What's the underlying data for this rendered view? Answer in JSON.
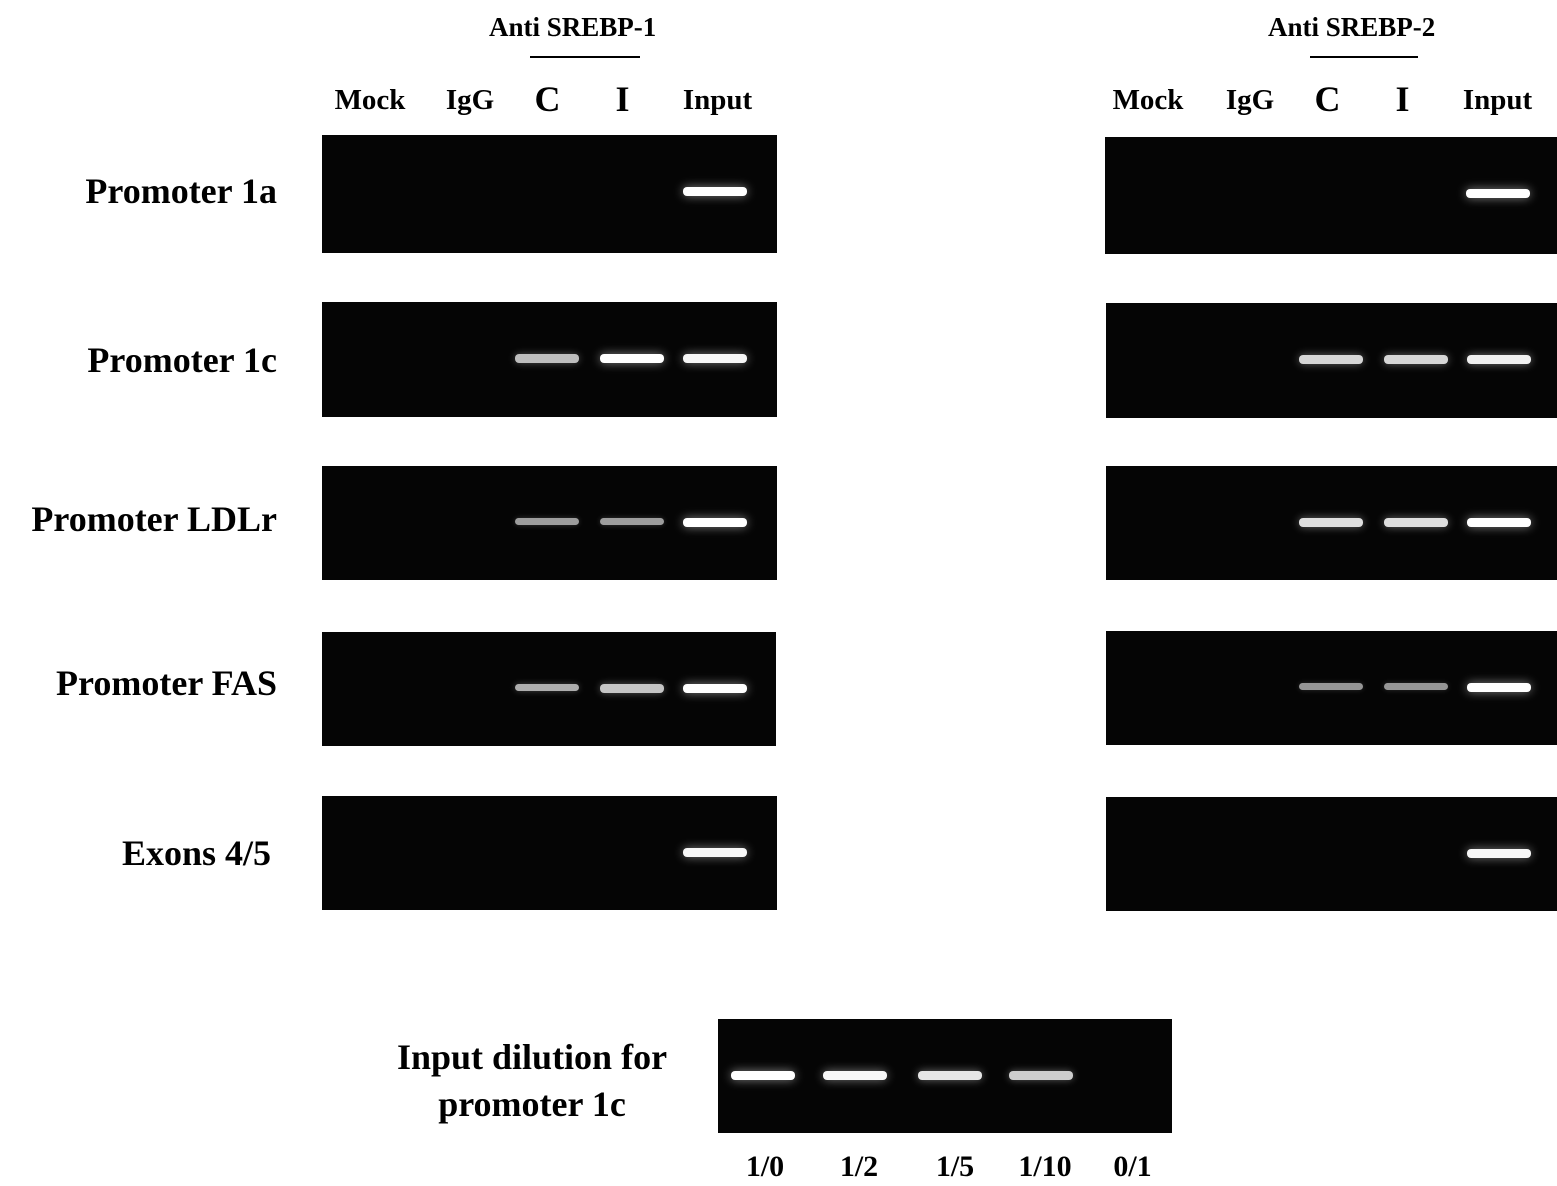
{
  "panels": [
    {
      "title": "Anti SREBP-1",
      "lanes": [
        "Mock",
        "IgG",
        "C",
        "I",
        "Input"
      ],
      "gels": [
        {
          "row": 0,
          "bands": [
            0,
            0,
            0,
            0,
            1.0
          ]
        },
        {
          "row": 1,
          "bands": [
            0,
            0,
            0.6,
            1.0,
            0.95
          ]
        },
        {
          "row": 2,
          "bands": [
            0,
            0,
            0.4,
            0.4,
            1.0
          ]
        },
        {
          "row": 3,
          "bands": [
            0,
            0,
            0.5,
            0.65,
            1.0
          ]
        },
        {
          "row": 4,
          "bands": [
            0,
            0,
            0,
            0,
            0.95
          ]
        }
      ]
    },
    {
      "title": "Anti SREBP-2",
      "lanes": [
        "Mock",
        "IgG",
        "C",
        "I",
        "Input"
      ],
      "gels": [
        {
          "row": 0,
          "bands": [
            0,
            0,
            0,
            0,
            1.0
          ]
        },
        {
          "row": 1,
          "bands": [
            0,
            0,
            0.75,
            0.75,
            0.9
          ]
        },
        {
          "row": 2,
          "bands": [
            0,
            0,
            0.8,
            0.8,
            1.0
          ]
        },
        {
          "row": 3,
          "bands": [
            0,
            0,
            0.35,
            0.35,
            1.0
          ]
        },
        {
          "row": 4,
          "bands": [
            0,
            0,
            0,
            0,
            0.95
          ]
        }
      ]
    }
  ],
  "rows": [
    "Promoter 1a",
    "Promoter 1c",
    "Promoter LDLr",
    "Promoter FAS",
    "Exons 4/5"
  ],
  "dilution": {
    "label_line1": "Input dilution for",
    "label_line2": "promoter 1c",
    "lanes": [
      "1/0",
      "1/2",
      "1/5",
      "1/10",
      "0/1"
    ],
    "bands": [
      1.0,
      0.95,
      0.85,
      0.7,
      0
    ]
  },
  "colors": {
    "gel": "#050505",
    "band": "#ffffff"
  }
}
